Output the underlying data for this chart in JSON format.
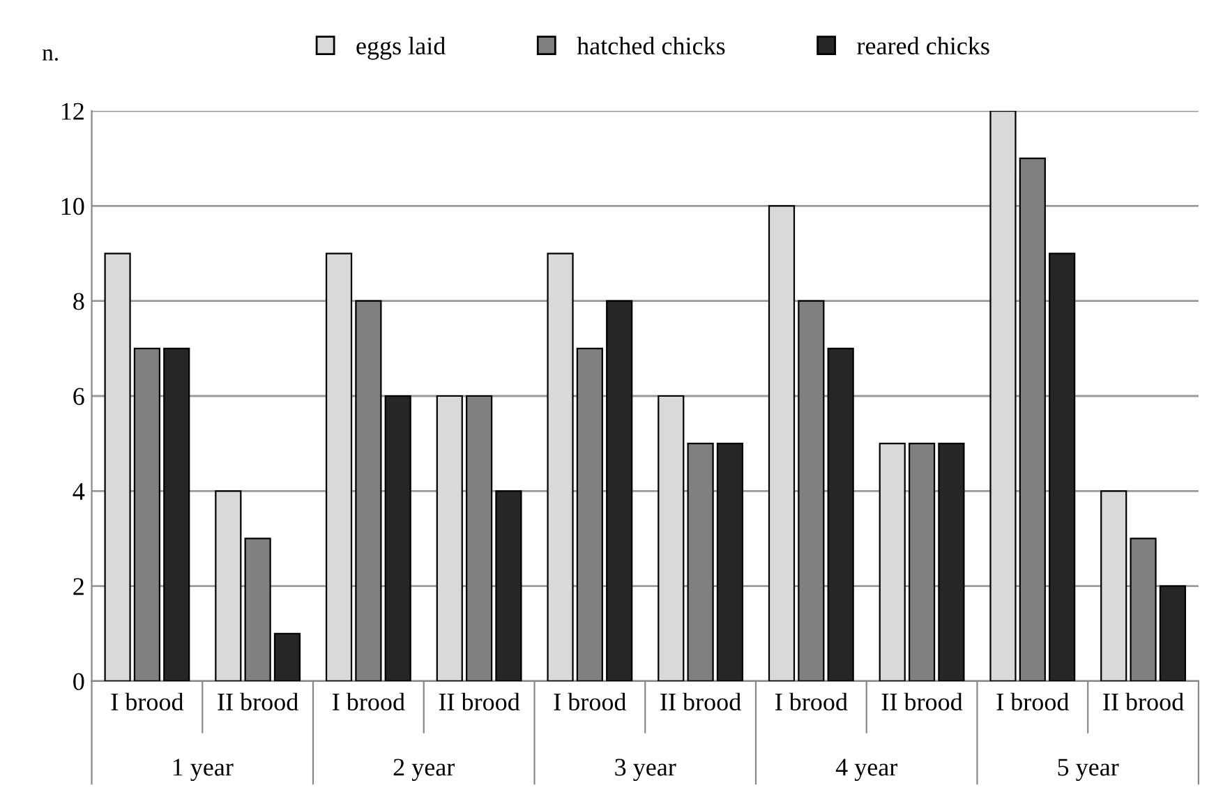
{
  "chart_data": {
    "type": "bar",
    "ylabel": "n.",
    "categories": [
      "I brood",
      "II brood",
      "I brood",
      "II brood",
      "I brood",
      "II brood",
      "I brood",
      "II brood",
      "I brood",
      "II brood"
    ],
    "series": [
      {
        "name": "eggs laid",
        "color": "#d9d9d9",
        "values": [
          9,
          4,
          9,
          6,
          9,
          6,
          10,
          5,
          12,
          4
        ]
      },
      {
        "name": "hatched chicks",
        "color": "#808080",
        "values": [
          7,
          3,
          8,
          6,
          7,
          5,
          8,
          5,
          11,
          3
        ]
      },
      {
        "name": "reared chicks",
        "color": "#262626",
        "values": [
          7,
          1,
          6,
          4,
          8,
          5,
          7,
          5,
          9,
          2
        ]
      }
    ],
    "annotations": [
      "1 year",
      "2 year",
      "3 year",
      "4 year",
      "5 year"
    ],
    "ylim": [
      0,
      12
    ],
    "yticks": [
      0,
      2,
      4,
      6,
      8,
      10,
      12
    ],
    "grid": "y",
    "legend": "top"
  }
}
